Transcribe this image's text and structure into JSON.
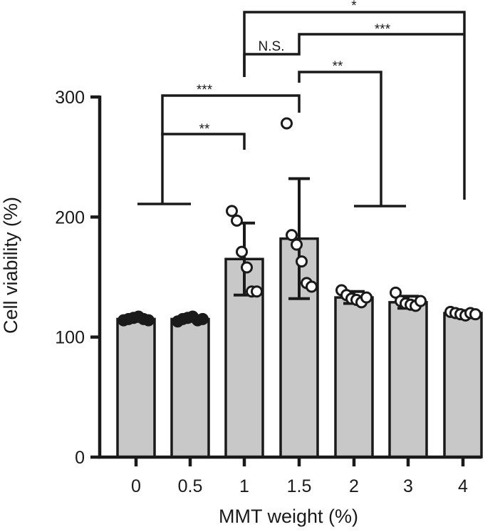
{
  "chart_data": {
    "type": "bar",
    "xlabel": "MMT weight (%)",
    "ylabel": "Cell viability (%)",
    "ylim": [
      0,
      300
    ],
    "yticks": [
      0,
      100,
      200,
      300
    ],
    "categories": [
      "0",
      "0.5",
      "1",
      "1.5",
      "2",
      "3",
      "4"
    ],
    "values": [
      115,
      115,
      165,
      182,
      133,
      129,
      120
    ],
    "error": [
      2,
      2,
      30,
      50,
      5,
      5,
      2
    ],
    "points": [
      [
        114,
        115,
        116,
        117,
        115,
        114
      ],
      [
        113,
        115,
        116,
        117,
        114,
        115
      ],
      [
        205,
        197,
        171,
        158,
        138,
        138
      ],
      [
        278,
        185,
        177,
        163,
        145,
        142
      ],
      [
        139,
        135,
        132,
        131,
        129,
        133
      ],
      [
        137,
        130,
        128,
        127,
        126,
        130
      ],
      [
        121,
        120,
        119,
        118,
        120,
        119
      ]
    ],
    "bar_color": "#c8c8c8",
    "significance": [
      {
        "label": "*",
        "from": "1",
        "to": "4"
      },
      {
        "label": "***",
        "from": "1.5",
        "to": "4"
      },
      {
        "label": "N.S.",
        "from": "1",
        "to": "1.5"
      },
      {
        "label": "**",
        "from": "1.5",
        "to": "2-4"
      },
      {
        "label": "***",
        "from": "0-0.5",
        "to": "1.5"
      },
      {
        "label": "**",
        "from": "0-0.5",
        "to": "1"
      }
    ]
  }
}
